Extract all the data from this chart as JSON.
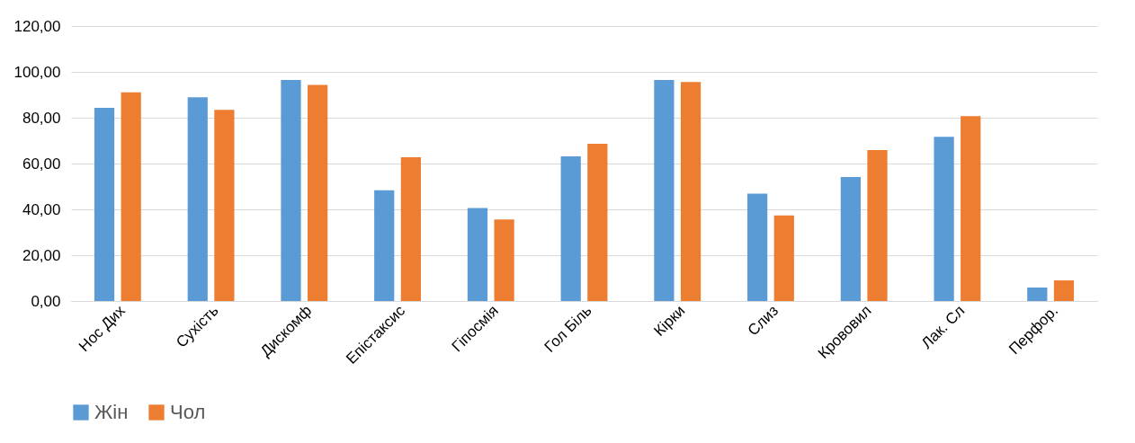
{
  "chart_data": {
    "type": "bar",
    "categories": [
      "Нос Дих",
      "Сухість",
      "Дискомф",
      "Епістаксис",
      "Гіпосмія",
      "Гол Біль",
      "Кірки",
      "Слиз",
      "Крововил",
      "Лак. Сл",
      "Перфор."
    ],
    "series": [
      {
        "name": "Жін",
        "color": "#5b9bd5",
        "values": [
          84.3,
          88.9,
          96.5,
          48.3,
          40.6,
          63.1,
          96.5,
          46.9,
          54.1,
          71.7,
          5.9
        ]
      },
      {
        "name": "Чол",
        "color": "#ed7d31",
        "values": [
          91.1,
          83.4,
          94.3,
          62.7,
          35.6,
          68.6,
          95.6,
          37.4,
          65.9,
          80.7,
          9.0
        ]
      }
    ],
    "ylim": [
      0,
      120
    ],
    "yticks": [
      {
        "value": 0,
        "label": "0,00"
      },
      {
        "value": 20,
        "label": "20,00"
      },
      {
        "value": 40,
        "label": "40,00"
      },
      {
        "value": 60,
        "label": "60,00"
      },
      {
        "value": 80,
        "label": "80,00"
      },
      {
        "value": 100,
        "label": "100,00"
      },
      {
        "value": 120,
        "label": "120,00"
      }
    ],
    "grid": "y",
    "legend": "bottom"
  }
}
